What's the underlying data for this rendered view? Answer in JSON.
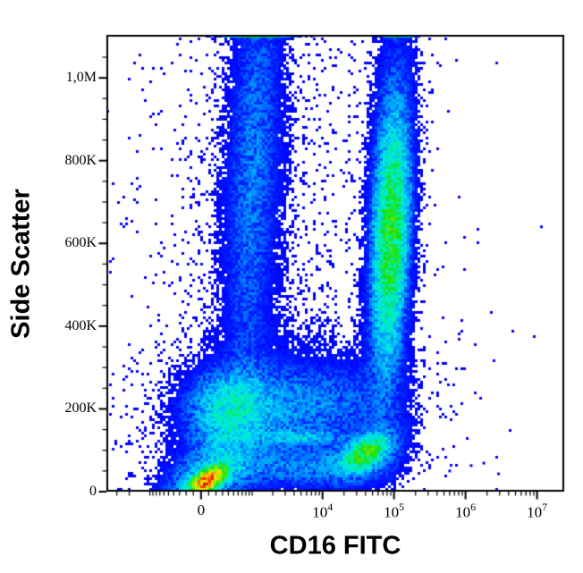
{
  "chart_data": {
    "type": "scatter",
    "subtype": "flow-cytometry-pseudocolor-density",
    "title": "",
    "xlabel": "CD16 FITC",
    "ylabel": "Side Scatter",
    "grid": false,
    "legend": null,
    "axes": {
      "x": {
        "scale": "asinh",
        "lin": 400,
        "min": -4200,
        "max": 24000000
      },
      "y": {
        "scale": "linear",
        "min": 0,
        "max": 1104000
      }
    },
    "x_ticks": [
      {
        "v": 0,
        "text": "0"
      },
      {
        "v": 10000,
        "base": "10",
        "sup": "4"
      },
      {
        "v": 100000,
        "base": "10",
        "sup": "5"
      },
      {
        "v": 1000000,
        "base": "10",
        "sup": "6"
      },
      {
        "v": 10000000,
        "base": "10",
        "sup": "7"
      }
    ],
    "y_ticks": [
      {
        "v": 0,
        "text": "0"
      },
      {
        "v": 200000,
        "text": "200K"
      },
      {
        "v": 400000,
        "text": "400K"
      },
      {
        "v": 600000,
        "text": "600K"
      },
      {
        "v": 800000,
        "text": "800K"
      },
      {
        "v": 1000000,
        "text": "1,0M"
      }
    ],
    "y_minor_step": 50000,
    "density_scale": {
      "floor": 0.004,
      "peak": 1.2
    },
    "colormap": [
      [
        0.0,
        "#0000FF"
      ],
      [
        0.18,
        "#0020FF"
      ],
      [
        0.32,
        "#0090FF"
      ],
      [
        0.45,
        "#00E5F0"
      ],
      [
        0.55,
        "#00F0A0"
      ],
      [
        0.63,
        "#10E010"
      ],
      [
        0.72,
        "#70E800"
      ],
      [
        0.8,
        "#C8F000"
      ],
      [
        0.87,
        "#FFD000"
      ],
      [
        0.93,
        "#FF7800"
      ],
      [
        1.0,
        "#E81000"
      ]
    ],
    "populations": [
      {
        "name": "lymphocytes-core",
        "x": 90,
        "y": 28000,
        "sa": 11,
        "sb": 5.5,
        "angle_deg": -33,
        "w": 1.0
      },
      {
        "name": "lymphocytes-mid",
        "x": 90,
        "y": 34000,
        "sa": 30,
        "sb": 16,
        "angle_deg": -30,
        "w": 0.035
      },
      {
        "name": "lymphocytes-outer",
        "x": 100,
        "y": 40000,
        "sa": 48,
        "sb": 26,
        "angle_deg": -30,
        "w": 0.006
      },
      {
        "name": "lymph-mono-bridge",
        "x": 390,
        "y": 151000,
        "sa": 25,
        "sb": 20,
        "angle_deg": -40,
        "w": 0.022
      },
      {
        "name": "monocytes-core",
        "x": 435,
        "y": 212000,
        "sa": 26,
        "sb": 22,
        "angle_deg": -10,
        "w": 0.04
      },
      {
        "name": "monocytes-tail",
        "x": 4600,
        "y": 205000,
        "sa": 62,
        "sb": 26,
        "angle_deg": -5,
        "w": 0.02
      },
      {
        "name": "monocytes-halo",
        "x": 1700,
        "y": 248000,
        "sa": 85,
        "sb": 45,
        "angle_deg": -10,
        "w": 0.005
      },
      {
        "name": "eosinophil-streak",
        "x": 4500,
        "y": 132000,
        "sa": 26,
        "sb": 5,
        "angle_deg": 0,
        "w": 0.035
      },
      {
        "name": "floor-band",
        "x": 4600,
        "y": 60000,
        "sa": 60,
        "sb": 15,
        "angle_deg": 0,
        "w": 0.02
      },
      {
        "name": "nk-cells-core",
        "x": 40000,
        "y": 93000,
        "sa": 15,
        "sb": 8,
        "angle_deg": -30,
        "w": 0.15
      },
      {
        "name": "nk-cells-halo",
        "x": 40000,
        "y": 93000,
        "sa": 30,
        "sb": 17,
        "angle_deg": -30,
        "w": 0.022
      },
      {
        "name": "neutrophils-core",
        "x": 90000,
        "y": 615000,
        "sa": 72,
        "sb": 10,
        "angle_deg": 92,
        "w": 0.13
      },
      {
        "name": "neutrophils-halo",
        "x": 92000,
        "y": 690000,
        "sa": 150,
        "sb": 17,
        "angle_deg": 92,
        "w": 0.016
      },
      {
        "name": "debris-column",
        "x": 1040,
        "y": 777000,
        "sa": 155,
        "sb": 16,
        "angle_deg": 92.5,
        "w": 0.016
      },
      {
        "name": "debris-column-halo",
        "x": 1040,
        "y": 755000,
        "sa": 175,
        "sb": 34,
        "angle_deg": 92.5,
        "w": 0.0035
      },
      {
        "name": "pinned-top-left",
        "x": 1175,
        "y": 1100000,
        "sa": 20,
        "sb": 1.0,
        "angle_deg": 0,
        "w": 0.13
      },
      {
        "name": "pinned-top-right",
        "x": 113000,
        "y": 1100000,
        "sa": 9,
        "sb": 1.0,
        "angle_deg": 0,
        "w": 0.11
      },
      {
        "name": "diffuse-background",
        "x": 1700,
        "y": 540000,
        "sa": 260,
        "sb": 90,
        "angle_deg": 90,
        "w": 0.0012
      }
    ],
    "outliers": [
      {
        "x": 11500000,
        "y": 640000
      },
      {
        "x": 1200000,
        "y": 63000
      },
      {
        "x": 1800000,
        "y": 69000
      },
      {
        "x": 600000,
        "y": 50000
      },
      {
        "x": 2900000,
        "y": 43000
      }
    ]
  }
}
